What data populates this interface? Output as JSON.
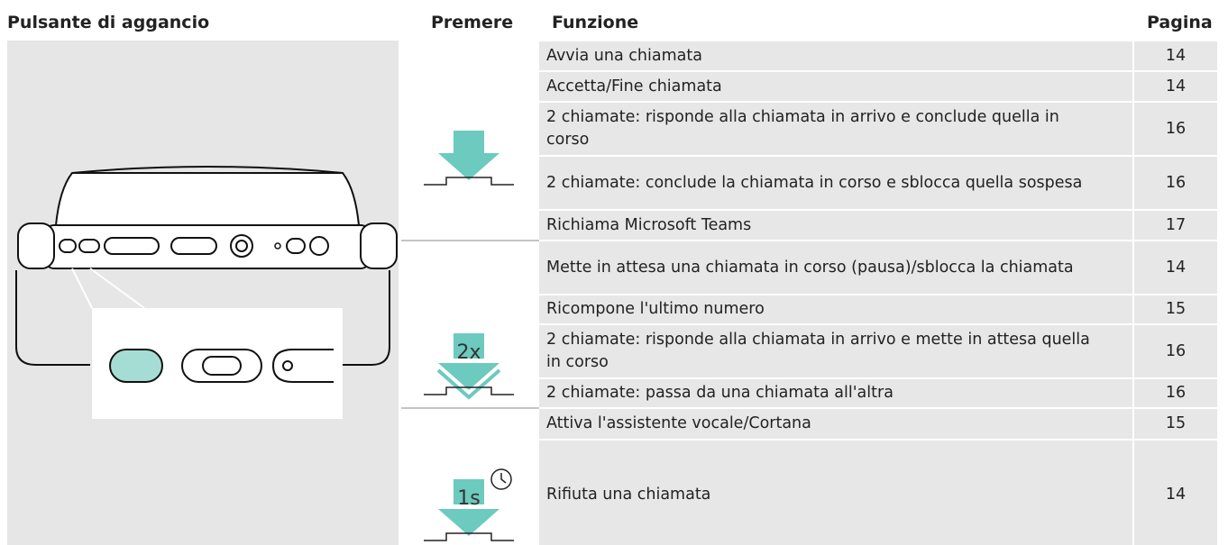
{
  "header": {
    "button": "Pulsante di aggancio",
    "press": "Premere",
    "function": "Funzione",
    "page": "Pagina"
  },
  "groups": [
    {
      "rows": [
        {
          "function": "Avvia una chiamata",
          "page": 14
        },
        {
          "function": "Accetta/Fine chiamata",
          "page": 14
        },
        {
          "function": "2 chiamate: risponde alla chiamata in arrivo e conclude quella in corso",
          "page": 16
        },
        {
          "function": "2 chiamate: conclude la chiamata in corso e sblocca quella sospesa",
          "page": 16
        },
        {
          "function": "Richiama Microsoft Teams",
          "page": 17
        }
      ]
    },
    {
      "press_label": "2x",
      "rows": [
        {
          "function": "Mette in attesa una chiamata in corso (pausa)/sblocca la chiamata",
          "page": 14
        },
        {
          "function": "Ricompone l'ultimo numero",
          "page": 15
        },
        {
          "function": "2 chiamate: risponde alla chiamata in arrivo e mette in attesa quella in corso",
          "page": 16
        },
        {
          "function": "2 chiamate: passa da una chiamata all'altra",
          "page": 16
        }
      ]
    },
    {
      "press_label": "1s",
      "rows": [
        {
          "function": "Attiva l'assistente vocale/Cortana",
          "page": 15
        },
        {
          "function": "Rifiuta una chiamata",
          "page": 14
        }
      ]
    }
  ]
}
